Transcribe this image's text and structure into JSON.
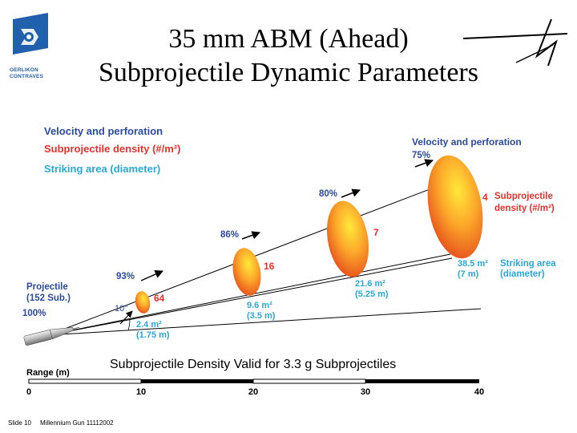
{
  "title": {
    "line1": "35 mm ABM (Ahead)",
    "line2": "Subprojectile Dynamic Parameters"
  },
  "logo": {
    "brand_line1": "OERLIKON",
    "brand_line2": "CONTRAVES"
  },
  "legend": {
    "velocity": "Velocity and perforation",
    "density": "Subprojectile density (#/m²)",
    "area": "Striking area (diameter)"
  },
  "projectile": {
    "label_line1": "Projectile",
    "label_line2": "(152 Sub.)",
    "velocity": "100%",
    "angle": "10°"
  },
  "stations": [
    {
      "velocity": "93%",
      "density": "64",
      "area": "2.4 m²",
      "diameter": "(1.75 m)"
    },
    {
      "velocity": "86%",
      "density": "16",
      "area": "9.6 m²",
      "diameter": "(3.5 m)"
    },
    {
      "velocity": "80%",
      "density": "7",
      "area": "21.6 m²",
      "diameter": "(5.25 m)"
    },
    {
      "velocity": "75%",
      "density": "4",
      "area": "38.5 m²",
      "diameter": "(7 m)"
    }
  ],
  "right_labels": {
    "velocity": "Velocity and perforation",
    "density_line1": "Subprojectile",
    "density_line2": "density (#/m²)",
    "area_line1": "Striking area",
    "area_line2": "(diameter)"
  },
  "note": "Subprojectile Density Valid for 3.3 g Subprojectiles",
  "range": {
    "label": "Range (m)",
    "ticks": [
      "0",
      "10",
      "20",
      "30",
      "40"
    ]
  },
  "footer": {
    "slide": "Slide 10",
    "event": "Millennium Gun 11112002"
  },
  "colors": {
    "blue": "#2b4a9b",
    "red": "#e5322d",
    "teal": "#2aa7d4",
    "orange_light": "#ffe23a",
    "orange_dark": "#e6491c"
  }
}
